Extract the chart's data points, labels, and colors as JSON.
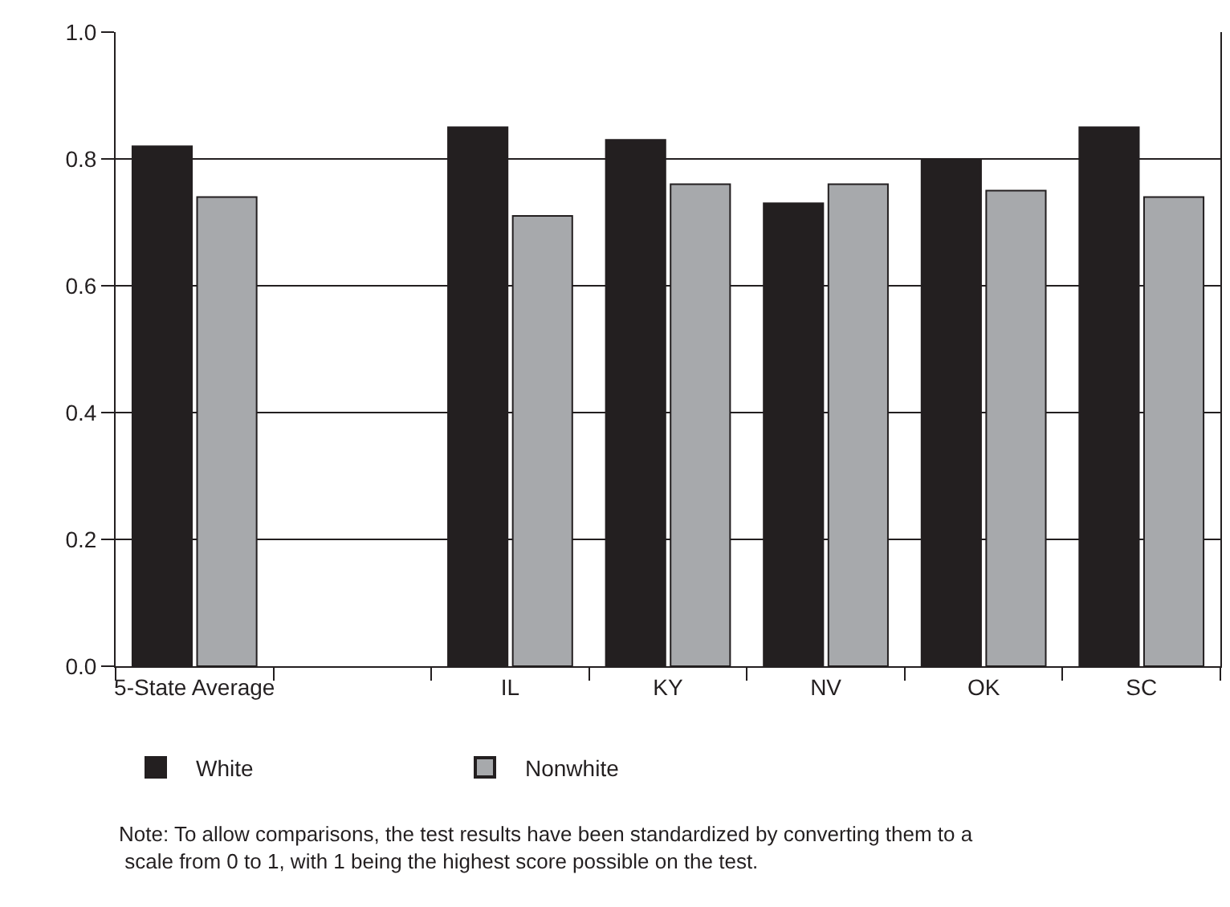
{
  "chart_data": {
    "type": "bar",
    "categories": [
      "5-State Average",
      null,
      "IL",
      "KY",
      "NV",
      "OK",
      "SC"
    ],
    "series": [
      {
        "name": "White",
        "color": "#231f20",
        "values": [
          0.82,
          null,
          0.85,
          0.83,
          0.73,
          0.8,
          0.85
        ]
      },
      {
        "name": "Nonwhite",
        "color": "#a7a9ac",
        "values": [
          0.74,
          null,
          0.71,
          0.76,
          0.76,
          0.75,
          0.74
        ]
      }
    ],
    "ylim": [
      0,
      1
    ],
    "yticks": [
      {
        "value": 0,
        "label": "0.0"
      },
      {
        "value": 0.2,
        "label": "0.2"
      },
      {
        "value": 0.4,
        "label": "0.4"
      },
      {
        "value": 0.6,
        "label": "0.6"
      },
      {
        "value": 0.8,
        "label": "0.8"
      },
      {
        "value": 1,
        "label": "1.0"
      }
    ],
    "grid": "y",
    "legend": "bottom left",
    "annotations": [
      "Note: To allow comparisons, the test results have been standardized by converting them to a\n scale from 0 to 1, with 1 being the highest score possible on the test."
    ]
  }
}
